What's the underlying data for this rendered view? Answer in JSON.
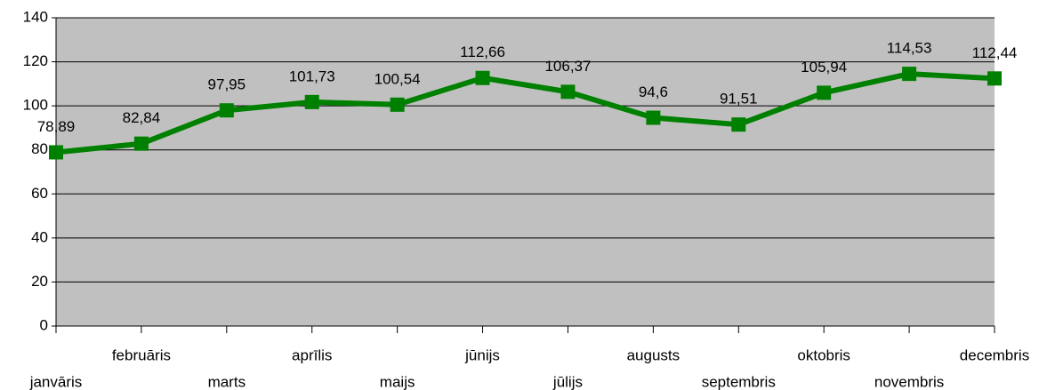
{
  "chart_data": {
    "type": "line",
    "categories": [
      "janvāris",
      "februāris",
      "marts",
      "aprīlis",
      "maijs",
      "jūnijs",
      "jūlijs",
      "augusts",
      "septembris",
      "oktobris",
      "novembris",
      "decembris"
    ],
    "series": [
      {
        "color": "#008000",
        "values": [
          78.89,
          82.84,
          97.95,
          101.73,
          100.54,
          112.66,
          106.37,
          94.6,
          91.51,
          105.94,
          114.53,
          112.44
        ],
        "value_labels": [
          "78,89",
          "82,84",
          "97,95",
          "101,73",
          "100,54",
          "112,66",
          "106,37",
          "94,6",
          "91,51",
          "105,94",
          "114,53",
          "112,44"
        ]
      }
    ],
    "ylim": [
      0,
      140
    ],
    "yticks": [
      0,
      20,
      40,
      60,
      80,
      100,
      120,
      140
    ],
    "grid": true,
    "plot_background": "#c0c0c0"
  }
}
